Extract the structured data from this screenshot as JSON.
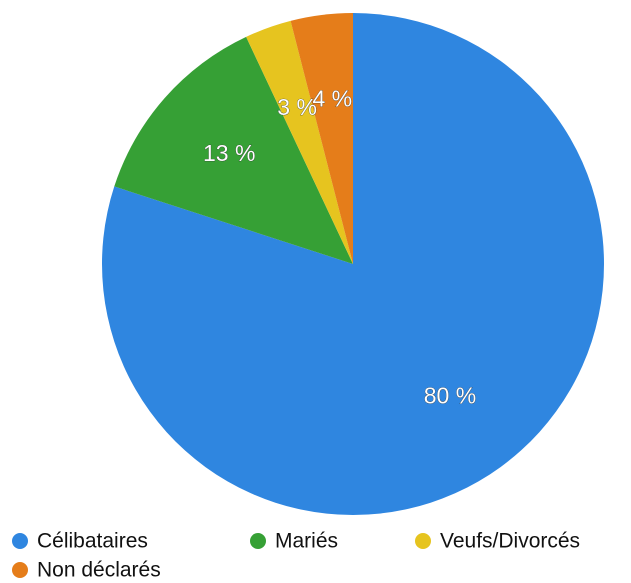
{
  "chart_data": {
    "type": "pie",
    "categories": [
      "Célibataires",
      "Mariés",
      "Veufs/Divorcés",
      "Non déclarés"
    ],
    "values": [
      80,
      13,
      3,
      4
    ],
    "value_labels": [
      "80 %",
      "13 %",
      "3 %",
      "4 %"
    ],
    "colors": [
      "#2f86e0",
      "#36a035",
      "#e6c41f",
      "#e57d1a"
    ]
  }
}
